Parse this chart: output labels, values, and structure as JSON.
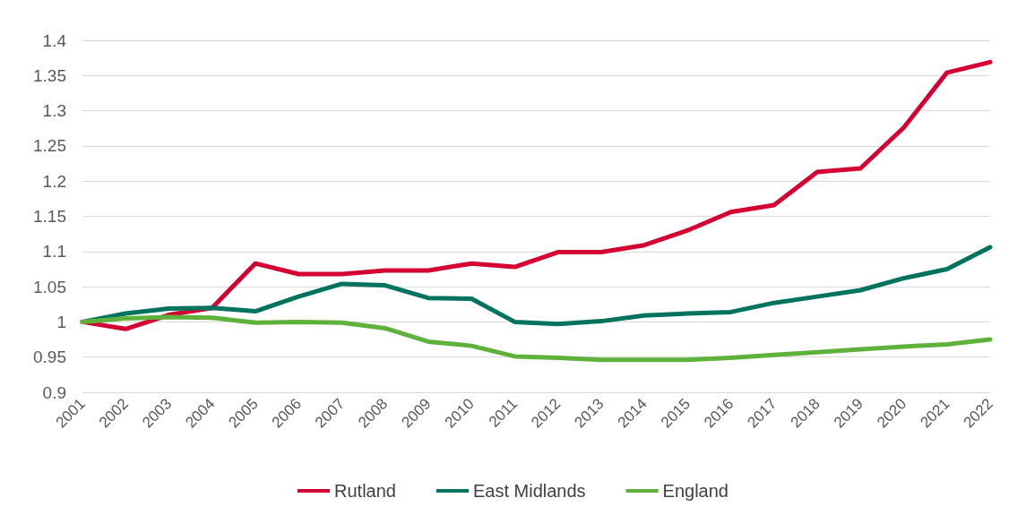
{
  "chart_data": {
    "type": "line",
    "categories": [
      "2001",
      "2002",
      "2003",
      "2004",
      "2005",
      "2006",
      "2007",
      "2008",
      "2009",
      "2010",
      "2011",
      "2012",
      "2013",
      "2014",
      "2015",
      "2016",
      "2017",
      "2018",
      "2019",
      "2020",
      "2021",
      "2022"
    ],
    "series": [
      {
        "name": "Rutland",
        "color": "#d50032",
        "values": [
          1.0,
          0.99,
          1.01,
          1.02,
          1.083,
          1.068,
          1.068,
          1.073,
          1.073,
          1.083,
          1.078,
          1.099,
          1.099,
          1.109,
          1.13,
          1.156,
          1.166,
          1.213,
          1.218,
          1.276,
          1.354,
          1.369
        ]
      },
      {
        "name": "East Midlands",
        "color": "#00735f",
        "values": [
          1.0,
          1.012,
          1.019,
          1.02,
          1.015,
          1.036,
          1.054,
          1.052,
          1.034,
          1.033,
          1.0,
          0.997,
          1.001,
          1.009,
          1.012,
          1.014,
          1.027,
          1.036,
          1.045,
          1.062,
          1.075,
          1.106
        ]
      },
      {
        "name": "England",
        "color": "#5eb13b",
        "values": [
          1.0,
          1.005,
          1.007,
          1.006,
          0.999,
          1.0,
          0.999,
          0.991,
          0.972,
          0.966,
          0.951,
          0.949,
          0.946,
          0.946,
          0.946,
          0.949,
          0.953,
          0.957,
          0.961,
          0.965,
          0.968,
          0.975
        ]
      }
    ],
    "ylim": [
      0.9,
      1.4
    ],
    "yticks": [
      0.9,
      0.95,
      1,
      1.05,
      1.1,
      1.15,
      1.2,
      1.25,
      1.3,
      1.35,
      1.4
    ],
    "grid": "y",
    "legend": "bottom",
    "marker": "none",
    "line_style": "solid"
  }
}
